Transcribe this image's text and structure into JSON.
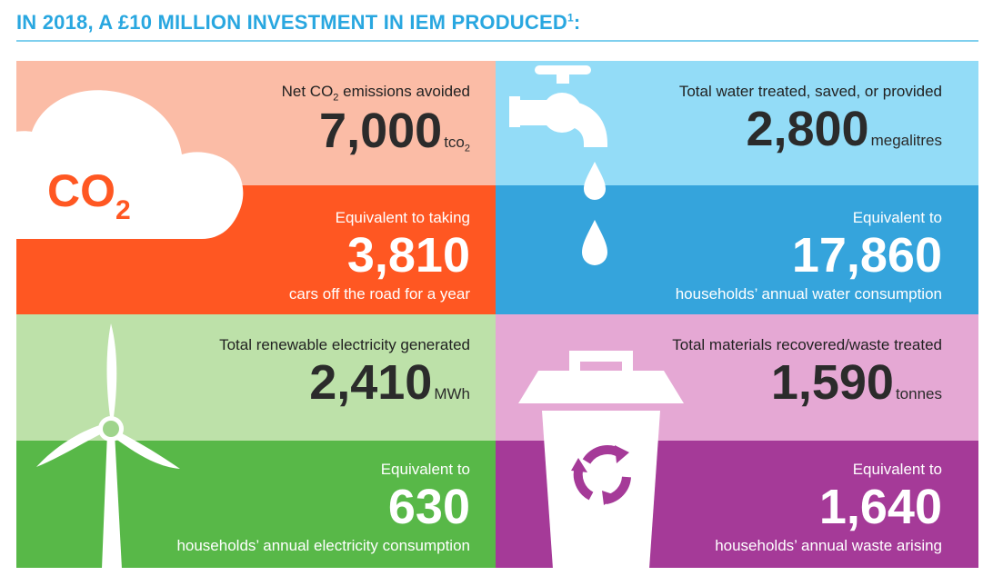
{
  "header": {
    "title": "IN 2018, A £10 MILLION INVESTMENT IN IEM PRODUCED",
    "footnote": "1"
  },
  "colors": {
    "accent": "#29a7e0",
    "co2_light": "#fbbca6",
    "co2_dark": "#ff5722",
    "water_light": "#93dcf7",
    "water_dark": "#35a4dc",
    "electric_light": "#bde1a9",
    "electric_dark": "#58b848",
    "waste_light": "#e5a8d4",
    "waste_dark": "#a53a98"
  },
  "icons": {
    "co2": "cloud-co2-icon",
    "water": "water-tap-icon",
    "electricity": "wind-turbine-icon",
    "waste": "recycling-bin-icon"
  },
  "co2": {
    "icon_text": "CO",
    "icon_sub": "2",
    "label_prefix": "Net CO",
    "label_sub": "2",
    "label_suffix": " emissions avoided",
    "value": "7,000",
    "unit": "tco",
    "unit_sub": "2",
    "equiv_label": "Equivalent to taking",
    "equiv_value": "3,810",
    "equiv_desc": "cars off the road for a year"
  },
  "water": {
    "label": "Total water treated, saved, or provided",
    "value": "2,800",
    "unit": "megalitres",
    "equiv_label": "Equivalent to",
    "equiv_value": "17,860",
    "equiv_desc": "households’ annual water consumption"
  },
  "electricity": {
    "label": "Total renewable electricity generated",
    "value": "2,410",
    "unit": "MWh",
    "equiv_label": "Equivalent to",
    "equiv_value": "630",
    "equiv_desc": "households’ annual electricity consumption"
  },
  "waste": {
    "label": "Total materials recovered/waste treated",
    "value": "1,590",
    "unit": "tonnes",
    "equiv_label": "Equivalent to",
    "equiv_value": "1,640",
    "equiv_desc": "households’ annual waste arising"
  }
}
